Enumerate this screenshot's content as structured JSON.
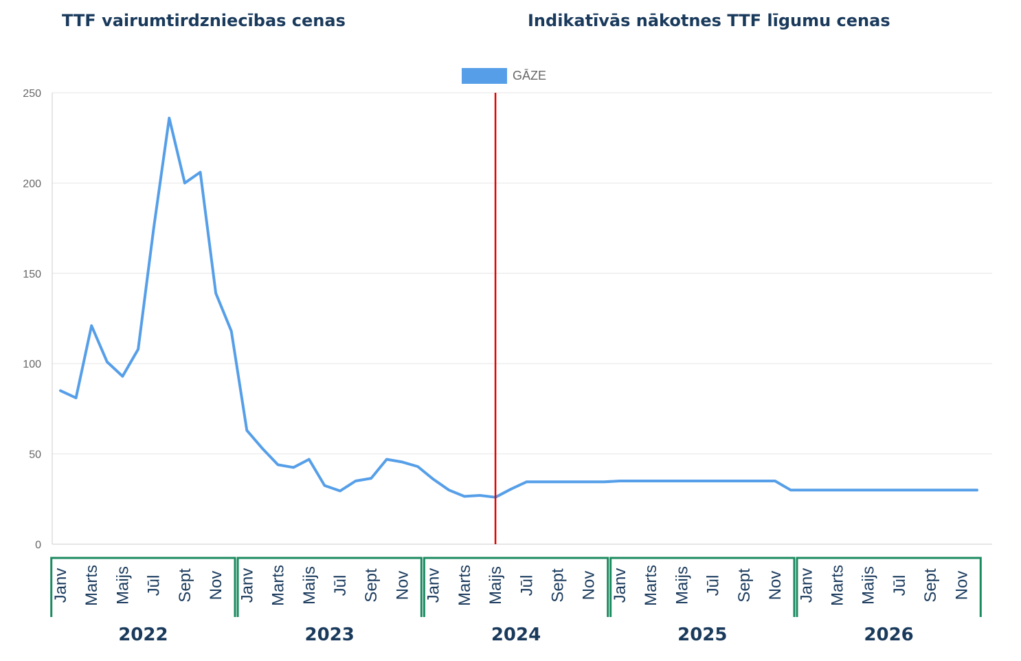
{
  "titles": {
    "left": "TTF vairumtirdzniecības cenas",
    "right": "Indikatīvās nākotnes TTF līgumu cenas"
  },
  "chart_data": {
    "type": "line",
    "legend": {
      "label": "GĀZE",
      "position": "top-center"
    },
    "ylim": [
      0,
      250
    ],
    "yticks": [
      0,
      50,
      100,
      150,
      200,
      250
    ],
    "grid": true,
    "series": [
      {
        "name": "GĀZE",
        "color": "#569fe8",
        "values": [
          85,
          81,
          121,
          101,
          93,
          108,
          175,
          236,
          200,
          206,
          139,
          118,
          63,
          53,
          44,
          42.5,
          47,
          32.5,
          29.5,
          35,
          36.5,
          47,
          45.5,
          43,
          36,
          30,
          26.5,
          27,
          26,
          30.5,
          34.5,
          34.5,
          34.5,
          34.5,
          34.5,
          34.5,
          35,
          35,
          35,
          35,
          35,
          35,
          35,
          35,
          35,
          35,
          35,
          30,
          30,
          30,
          30,
          30,
          30,
          30,
          30,
          30,
          30,
          30,
          30,
          30
        ]
      }
    ],
    "marker_line": {
      "at_index": 28,
      "color": "#e00000"
    },
    "year_groups": [
      {
        "year": "2022",
        "months": [
          "Janv",
          "Marts",
          "Maijs",
          "Jūl",
          "Sept",
          "Nov"
        ]
      },
      {
        "year": "2023",
        "months": [
          "Janv",
          "Marts",
          "Maijs",
          "Jūl",
          "Sept",
          "Nov"
        ]
      },
      {
        "year": "2024",
        "months": [
          "Janv",
          "Marts",
          "Maijs",
          "Jūl",
          "Sept",
          "Nov"
        ]
      },
      {
        "year": "2025",
        "months": [
          "Janv",
          "Marts",
          "Maijs",
          "Jūl",
          "Sept",
          "Nov"
        ]
      },
      {
        "year": "2026",
        "months": [
          "Janv",
          "Marts",
          "Maijs",
          "Jūl",
          "Sept",
          "Nov"
        ]
      }
    ],
    "colors": {
      "grid": "#e6e6e6",
      "axis": "#cccccc",
      "bracket": "#1a8a5f"
    }
  }
}
